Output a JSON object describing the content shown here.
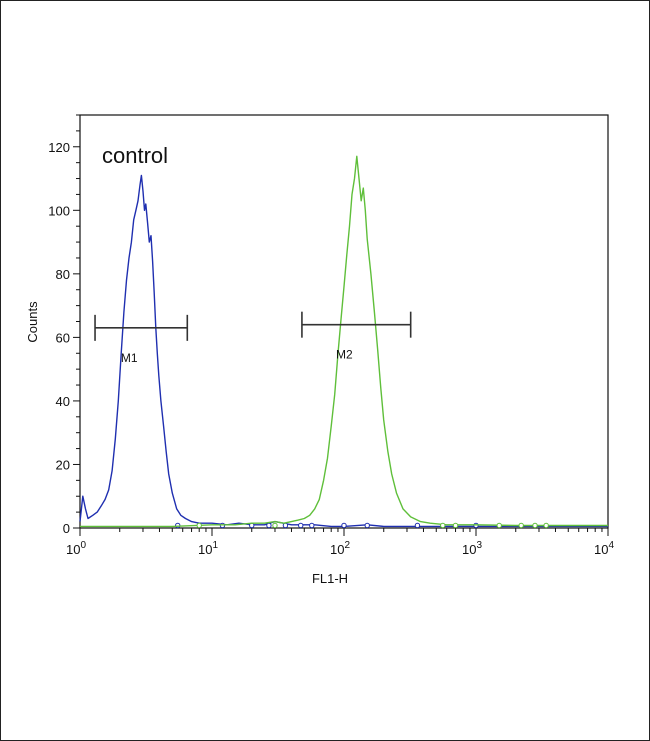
{
  "chart_data": {
    "type": "line",
    "xlabel": "FL1-H",
    "ylabel": "Counts",
    "x_scale": "log",
    "xlim": [
      1,
      10000
    ],
    "ylim": [
      0,
      130
    ],
    "x_ticks": [
      {
        "value": 1,
        "base": "10",
        "exp": "0"
      },
      {
        "value": 10,
        "base": "10",
        "exp": "1"
      },
      {
        "value": 100,
        "base": "10",
        "exp": "2"
      },
      {
        "value": 1000,
        "base": "10",
        "exp": "3"
      },
      {
        "value": 10000,
        "base": "10",
        "exp": "4"
      }
    ],
    "y_ticks": [
      0,
      20,
      40,
      60,
      80,
      100,
      120
    ],
    "grid": false,
    "annotations": [
      {
        "text": "control"
      }
    ],
    "markers": [
      {
        "label": "M1",
        "x_start": 1.3,
        "x_end": 6.5,
        "y": 63
      },
      {
        "label": "M2",
        "x_start": 48,
        "x_end": 320,
        "y": 64
      }
    ],
    "series": [
      {
        "color": "#1f2fb0",
        "points": [
          [
            1.0,
            2
          ],
          [
            1.05,
            10
          ],
          [
            1.1,
            6
          ],
          [
            1.15,
            3
          ],
          [
            1.25,
            4
          ],
          [
            1.35,
            5
          ],
          [
            1.45,
            7
          ],
          [
            1.55,
            9
          ],
          [
            1.65,
            12
          ],
          [
            1.75,
            18
          ],
          [
            1.85,
            28
          ],
          [
            1.95,
            40
          ],
          [
            2.05,
            55
          ],
          [
            2.15,
            68
          ],
          [
            2.25,
            78
          ],
          [
            2.35,
            85
          ],
          [
            2.45,
            90
          ],
          [
            2.55,
            97
          ],
          [
            2.65,
            100
          ],
          [
            2.75,
            103
          ],
          [
            2.85,
            108
          ],
          [
            2.92,
            111
          ],
          [
            3.0,
            106
          ],
          [
            3.08,
            100
          ],
          [
            3.15,
            102
          ],
          [
            3.25,
            96
          ],
          [
            3.35,
            90
          ],
          [
            3.45,
            92
          ],
          [
            3.55,
            84
          ],
          [
            3.65,
            74
          ],
          [
            3.75,
            63
          ],
          [
            3.85,
            55
          ],
          [
            3.95,
            48
          ],
          [
            4.1,
            40
          ],
          [
            4.3,
            32
          ],
          [
            4.5,
            24
          ],
          [
            4.7,
            17
          ],
          [
            5.0,
            11
          ],
          [
            5.4,
            6
          ],
          [
            5.8,
            4
          ],
          [
            6.3,
            3
          ],
          [
            7.0,
            2
          ],
          [
            8.0,
            1.5
          ],
          [
            10,
            1.5
          ],
          [
            13,
            1
          ],
          [
            16,
            1.5
          ],
          [
            20,
            1
          ],
          [
            25,
            1
          ],
          [
            30,
            2
          ],
          [
            40,
            1
          ],
          [
            50,
            1
          ],
          [
            60,
            1
          ],
          [
            80,
            0.5
          ],
          [
            100,
            0.5
          ],
          [
            150,
            1
          ],
          [
            200,
            0.5
          ],
          [
            300,
            0.5
          ],
          [
            500,
            0.5
          ],
          [
            1000,
            0.5
          ],
          [
            3000,
            0.5
          ],
          [
            10000,
            0.5
          ]
        ],
        "hollow_points": [
          5.5,
          12,
          20,
          27,
          36,
          47,
          57,
          100,
          150,
          360,
          1000
        ]
      },
      {
        "color": "#5fbf3a",
        "points": [
          [
            1.0,
            0.5
          ],
          [
            5,
            0.5
          ],
          [
            10,
            1
          ],
          [
            15,
            1
          ],
          [
            20,
            1.5
          ],
          [
            25,
            1.5
          ],
          [
            30,
            2
          ],
          [
            35,
            1.5
          ],
          [
            40,
            2
          ],
          [
            45,
            2.5
          ],
          [
            50,
            3
          ],
          [
            55,
            4
          ],
          [
            60,
            6
          ],
          [
            65,
            9
          ],
          [
            70,
            15
          ],
          [
            75,
            22
          ],
          [
            80,
            32
          ],
          [
            85,
            42
          ],
          [
            90,
            55
          ],
          [
            95,
            66
          ],
          [
            100,
            76
          ],
          [
            105,
            86
          ],
          [
            110,
            95
          ],
          [
            115,
            105
          ],
          [
            120,
            110
          ],
          [
            125,
            117
          ],
          [
            130,
            110
          ],
          [
            135,
            103
          ],
          [
            140,
            107
          ],
          [
            145,
            100
          ],
          [
            150,
            91
          ],
          [
            160,
            80
          ],
          [
            170,
            68
          ],
          [
            180,
            56
          ],
          [
            190,
            44
          ],
          [
            200,
            34
          ],
          [
            215,
            24
          ],
          [
            230,
            17
          ],
          [
            250,
            11
          ],
          [
            280,
            6
          ],
          [
            320,
            3.5
          ],
          [
            380,
            2
          ],
          [
            450,
            1.5
          ],
          [
            600,
            1
          ],
          [
            1000,
            1
          ],
          [
            2000,
            0.8
          ],
          [
            5000,
            0.8
          ],
          [
            10000,
            0.8
          ]
        ],
        "hollow_points": [
          8,
          30,
          560,
          700,
          1500,
          2200,
          2800,
          3400
        ]
      }
    ]
  }
}
